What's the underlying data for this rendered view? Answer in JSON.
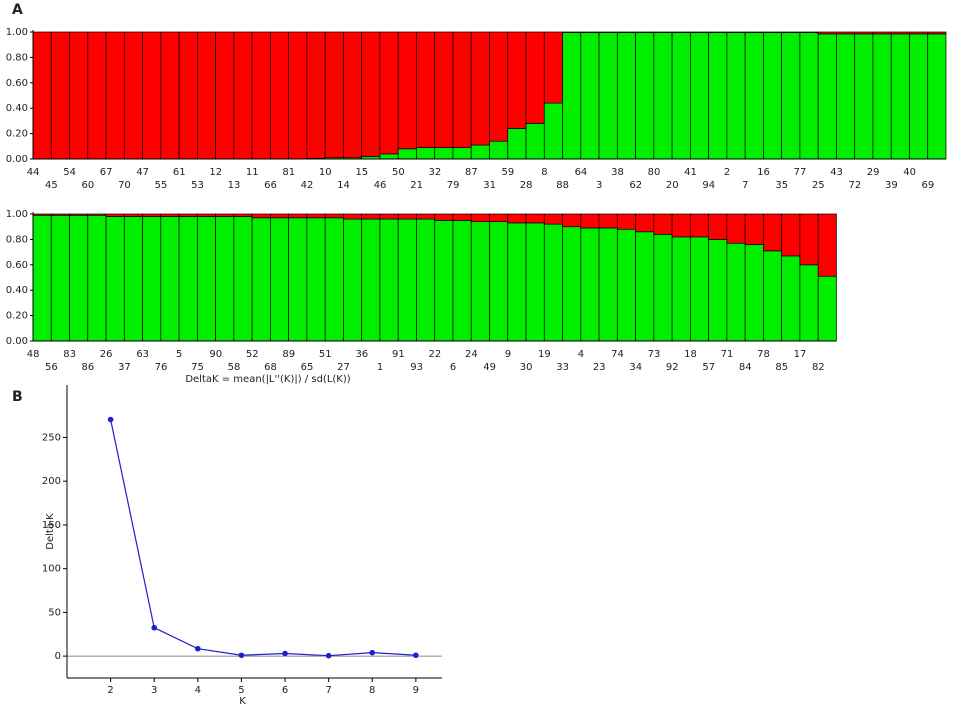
{
  "panels": [
    "A",
    "B"
  ],
  "chart_data": [
    {
      "type": "stacked-bar",
      "categories": [
        "44",
        "45",
        "54",
        "60",
        "67",
        "70",
        "47",
        "55",
        "61",
        "53",
        "12",
        "13",
        "11",
        "66",
        "81",
        "42",
        "10",
        "14",
        "15",
        "46",
        "50",
        "21",
        "32",
        "79",
        "87",
        "31",
        "59",
        "28",
        "8",
        "88",
        "64",
        "3",
        "38",
        "62",
        "80",
        "20",
        "41",
        "94",
        "2",
        "7",
        "16",
        "35",
        "77",
        "25",
        "43",
        "72",
        "29",
        "39",
        "40",
        "69"
      ],
      "series": [
        {
          "color": "#00ee00",
          "values": [
            0,
            0,
            0,
            0,
            0,
            0,
            0,
            0,
            0,
            0,
            0,
            0,
            0,
            0,
            0,
            0.005,
            0.01,
            0.01,
            0.02,
            0.04,
            0.08,
            0.09,
            0.09,
            0.09,
            0.11,
            0.14,
            0.24,
            0.28,
            0.44,
            0.995,
            0.995,
            0.995,
            0.995,
            0.995,
            0.995,
            0.995,
            0.995,
            0.995,
            0.995,
            0.995,
            0.995,
            0.995,
            0.995,
            0.985,
            0.985,
            0.985,
            0.985,
            0.985,
            0.985,
            0.985
          ]
        },
        {
          "color": "#ff0000",
          "values": [
            1,
            1,
            1,
            1,
            1,
            1,
            1,
            1,
            1,
            1,
            1,
            1,
            1,
            1,
            1,
            0.995,
            0.99,
            0.99,
            0.98,
            0.96,
            0.92,
            0.91,
            0.91,
            0.91,
            0.89,
            0.86,
            0.76,
            0.72,
            0.56,
            0.005,
            0.005,
            0.005,
            0.005,
            0.005,
            0.005,
            0.005,
            0.005,
            0.005,
            0.005,
            0.005,
            0.005,
            0.005,
            0.005,
            0.015,
            0.015,
            0.015,
            0.015,
            0.015,
            0.015,
            0.015
          ]
        }
      ],
      "ylim": [
        0,
        1
      ],
      "yticks": [
        {
          "value": 0,
          "label": "0.00"
        },
        {
          "value": 0.2,
          "label": "0.20"
        },
        {
          "value": 0.4,
          "label": "0.40"
        },
        {
          "value": 0.6,
          "label": "0.60"
        },
        {
          "value": 0.8,
          "label": "0.80"
        },
        {
          "value": 1,
          "label": "1.00"
        }
      ]
    },
    {
      "type": "stacked-bar",
      "categories": [
        "48",
        "56",
        "83",
        "86",
        "26",
        "37",
        "63",
        "76",
        "5",
        "75",
        "90",
        "58",
        "52",
        "68",
        "89",
        "65",
        "51",
        "27",
        "36",
        "1",
        "91",
        "93",
        "22",
        "6",
        "24",
        "49",
        "9",
        "30",
        "19",
        "33",
        "4",
        "23",
        "74",
        "34",
        "73",
        "92",
        "18",
        "57",
        "71",
        "84",
        "78",
        "85",
        "17",
        "82"
      ],
      "series": [
        {
          "color": "#00ee00",
          "values": [
            0.99,
            0.99,
            0.99,
            0.99,
            0.98,
            0.98,
            0.98,
            0.98,
            0.98,
            0.98,
            0.98,
            0.98,
            0.97,
            0.97,
            0.97,
            0.97,
            0.97,
            0.96,
            0.96,
            0.96,
            0.96,
            0.96,
            0.95,
            0.95,
            0.94,
            0.94,
            0.93,
            0.93,
            0.92,
            0.9,
            0.89,
            0.89,
            0.88,
            0.86,
            0.84,
            0.82,
            0.82,
            0.8,
            0.77,
            0.76,
            0.71,
            0.67,
            0.6,
            0.51
          ]
        },
        {
          "color": "#ff0000",
          "values": [
            0.01,
            0.01,
            0.01,
            0.01,
            0.02,
            0.02,
            0.02,
            0.02,
            0.02,
            0.02,
            0.02,
            0.02,
            0.03,
            0.03,
            0.03,
            0.03,
            0.03,
            0.04,
            0.04,
            0.04,
            0.04,
            0.04,
            0.05,
            0.05,
            0.06,
            0.06,
            0.07,
            0.07,
            0.08,
            0.1,
            0.11,
            0.11,
            0.12,
            0.14,
            0.16,
            0.18,
            0.18,
            0.2,
            0.23,
            0.24,
            0.29,
            0.33,
            0.4,
            0.49
          ]
        }
      ],
      "ylim": [
        0,
        1
      ],
      "yticks": [
        {
          "value": 0,
          "label": "0.00"
        },
        {
          "value": 0.2,
          "label": "0.20"
        },
        {
          "value": 0.4,
          "label": "0.40"
        },
        {
          "value": 0.6,
          "label": "0.60"
        },
        {
          "value": 0.8,
          "label": "0.80"
        },
        {
          "value": 1,
          "label": "1.00"
        }
      ]
    },
    {
      "type": "line",
      "title": "DeltaK = mean(|L''(K)|) / sd(L(K))",
      "x_label": "K",
      "y_label": "Delta K",
      "x": [
        2,
        3,
        4,
        5,
        6,
        7,
        8,
        9
      ],
      "values": [
        270.5,
        32.5,
        8.5,
        1,
        3,
        0.5,
        4,
        1
      ],
      "color": "#1f1fcc",
      "xlim": [
        1,
        9.6
      ],
      "xticks": [
        2,
        3,
        4,
        5,
        6,
        7,
        8,
        9
      ],
      "ylim": [
        -25,
        310
      ],
      "yticks": [
        0,
        50,
        100,
        150,
        200,
        250
      ]
    }
  ]
}
